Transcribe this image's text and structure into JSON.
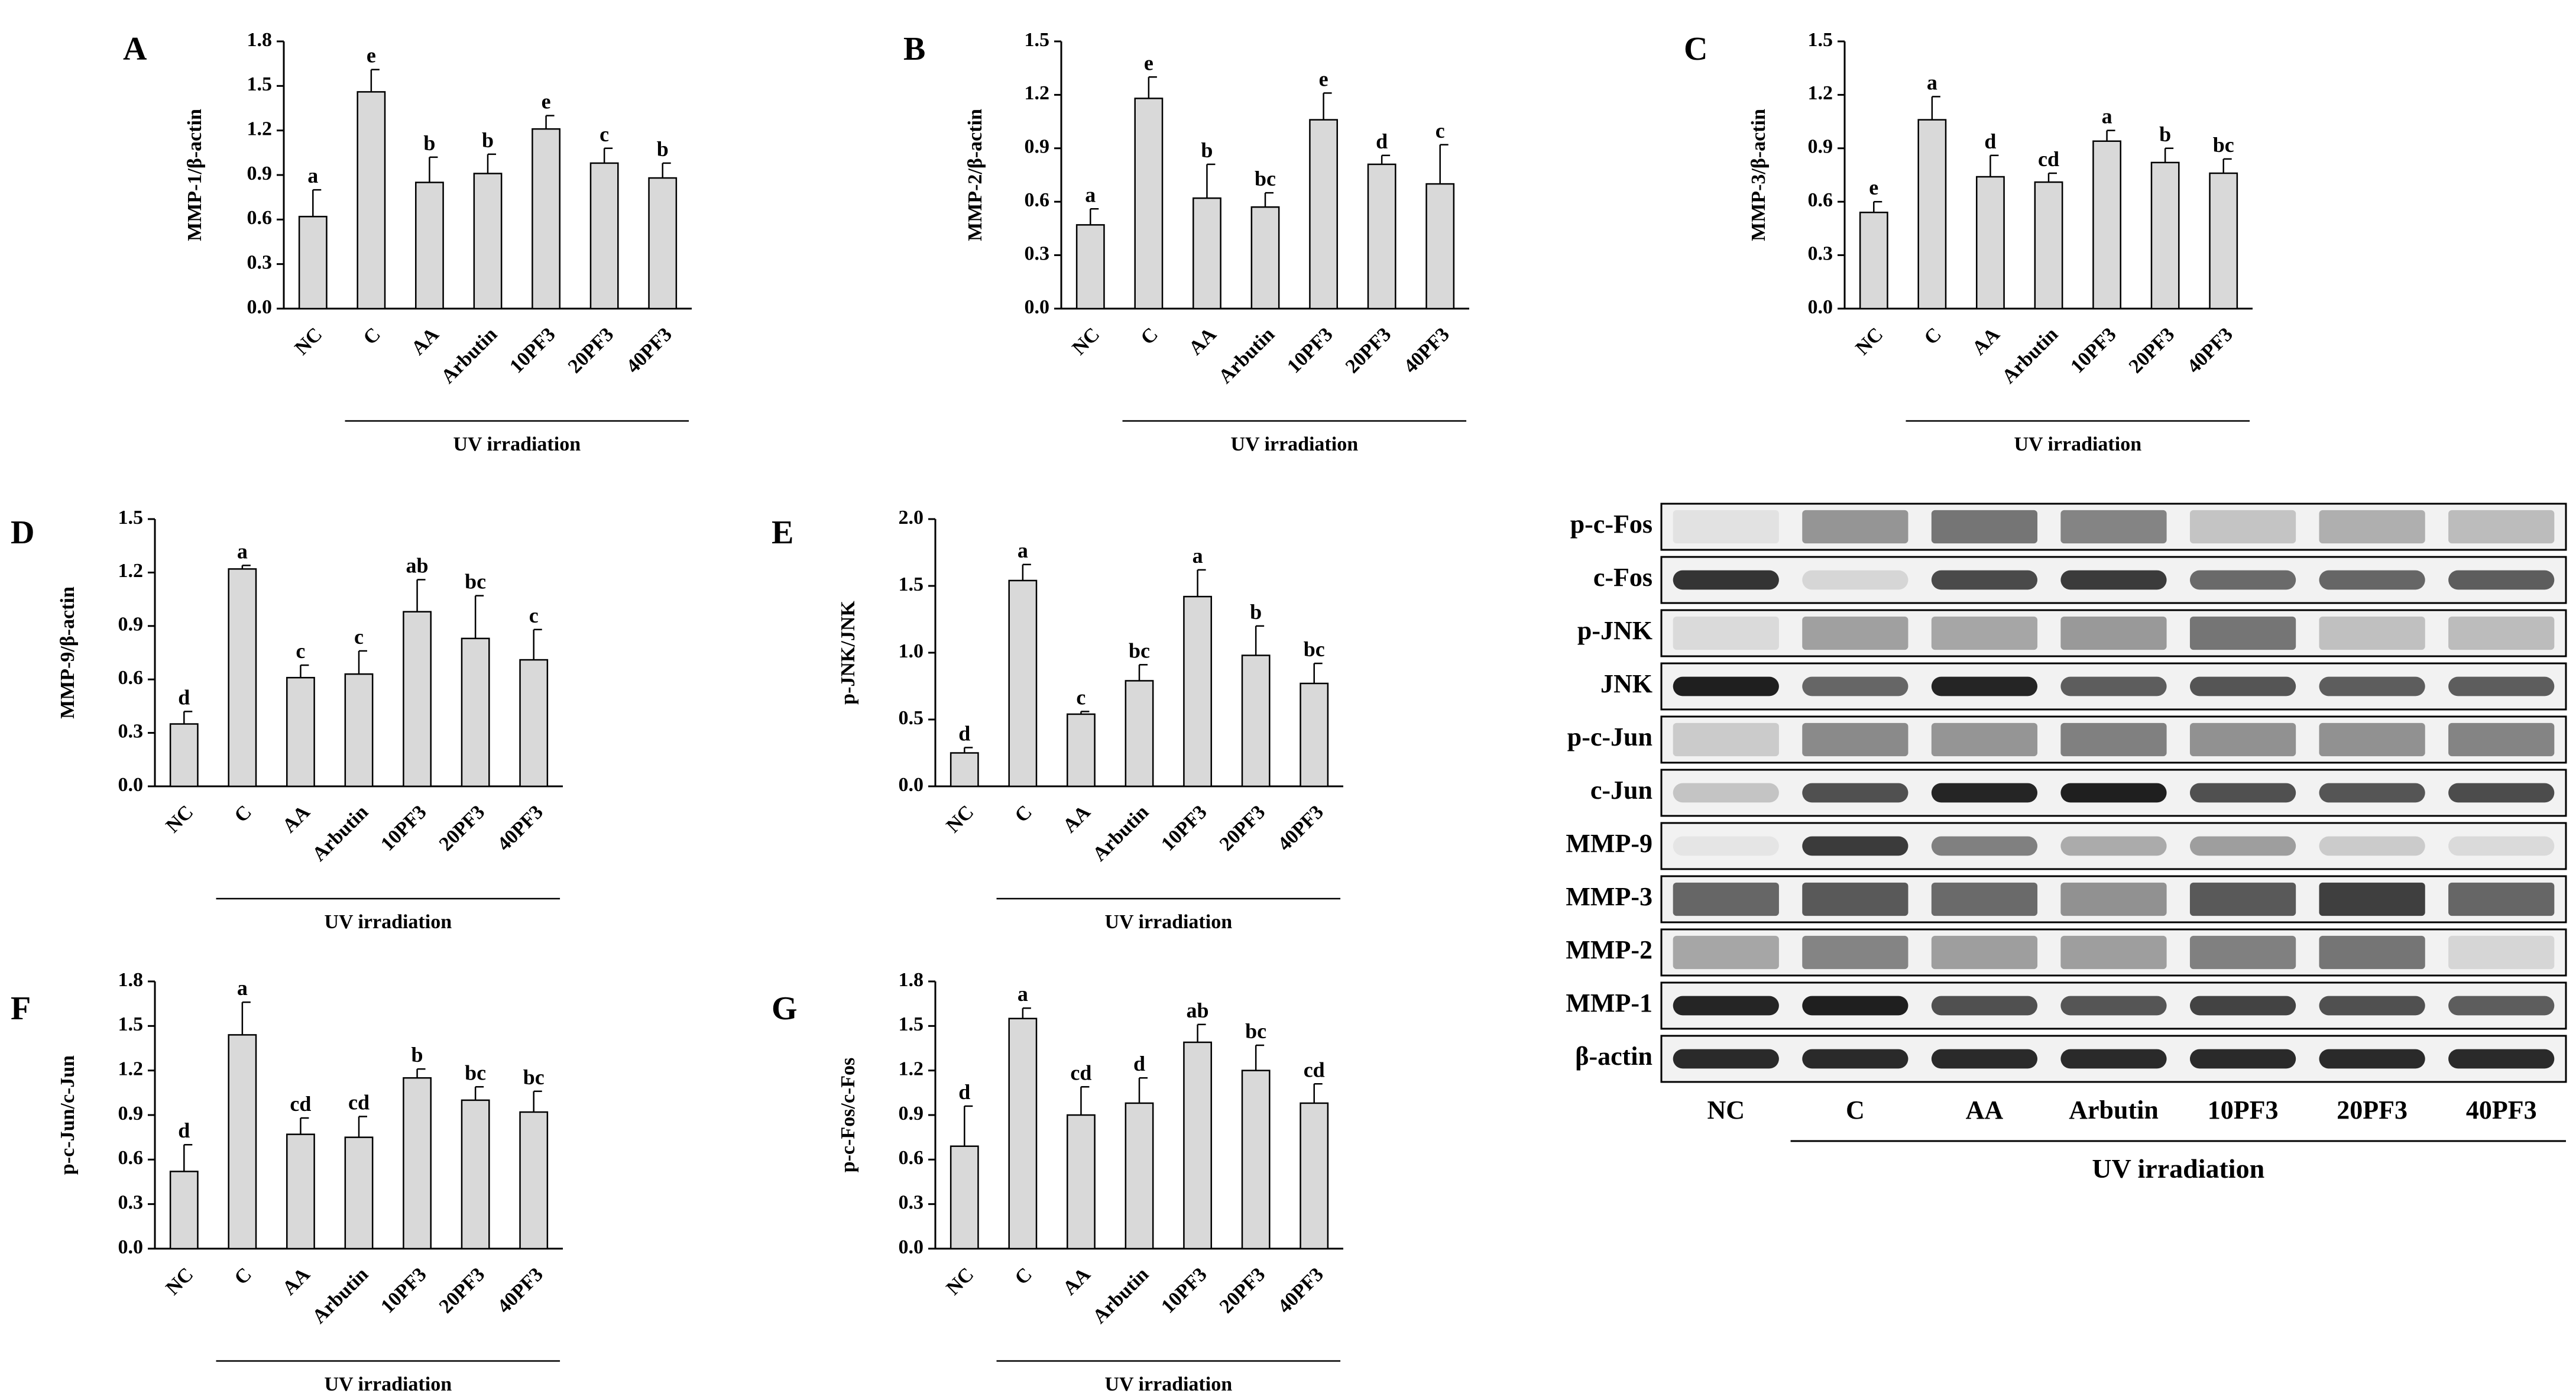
{
  "chart_data": [
    {
      "type": "bar",
      "panel": "A",
      "ylabel": "MMP-1/β-actin",
      "ylim": [
        0,
        1.8
      ],
      "yticks": [
        "0.0",
        "0.3",
        "0.6",
        "0.9",
        "1.2",
        "1.5",
        "1.8"
      ],
      "categories": [
        "NC",
        "C",
        "AA",
        "Arbutin",
        "10PF3",
        "20PF3",
        "40PF3"
      ],
      "values": [
        0.62,
        1.46,
        0.85,
        0.91,
        1.21,
        0.98,
        0.88
      ],
      "errors": [
        0.18,
        0.15,
        0.17,
        0.13,
        0.09,
        0.1,
        0.1
      ],
      "sig": [
        "a",
        "e",
        "b",
        "b",
        "e",
        "c",
        "b"
      ],
      "group_label": "UV irradiation"
    },
    {
      "type": "bar",
      "panel": "B",
      "ylabel": "MMP-2/β-actin",
      "ylim": [
        0,
        1.5
      ],
      "yticks": [
        "0.0",
        "0.3",
        "0.6",
        "0.9",
        "1.2",
        "1.5"
      ],
      "categories": [
        "NC",
        "C",
        "AA",
        "Arbutin",
        "10PF3",
        "20PF3",
        "40PF3"
      ],
      "values": [
        0.47,
        1.18,
        0.62,
        0.57,
        1.06,
        0.81,
        0.7
      ],
      "errors": [
        0.09,
        0.12,
        0.19,
        0.08,
        0.15,
        0.05,
        0.22
      ],
      "sig": [
        "a",
        "e",
        "b",
        "bc",
        "e",
        "d",
        "c"
      ],
      "group_label": "UV irradiation"
    },
    {
      "type": "bar",
      "panel": "C",
      "ylabel": "MMP-3/β-actin",
      "ylim": [
        0,
        1.5
      ],
      "yticks": [
        "0.0",
        "0.3",
        "0.6",
        "0.9",
        "1.2",
        "1.5"
      ],
      "categories": [
        "NC",
        "C",
        "AA",
        "Arbutin",
        "10PF3",
        "20PF3",
        "40PF3"
      ],
      "values": [
        0.54,
        1.06,
        0.74,
        0.71,
        0.94,
        0.82,
        0.76
      ],
      "errors": [
        0.06,
        0.13,
        0.12,
        0.05,
        0.06,
        0.08,
        0.08
      ],
      "sig": [
        "e",
        "a",
        "d",
        "cd",
        "a",
        "b",
        "bc"
      ],
      "group_label": "UV irradiation"
    },
    {
      "type": "bar",
      "panel": "D",
      "ylabel": "MMP-9/β-actin",
      "ylim": [
        0,
        1.5
      ],
      "yticks": [
        "0.0",
        "0.3",
        "0.6",
        "0.9",
        "1.2",
        "1.5"
      ],
      "categories": [
        "NC",
        "C",
        "AA",
        "Arbutin",
        "10PF3",
        "20PF3",
        "40PF3"
      ],
      "values": [
        0.35,
        1.22,
        0.61,
        0.63,
        0.98,
        0.83,
        0.71
      ],
      "errors": [
        0.07,
        0.02,
        0.07,
        0.13,
        0.18,
        0.24,
        0.17
      ],
      "sig": [
        "d",
        "a",
        "c",
        "c",
        "ab",
        "bc",
        "c"
      ],
      "group_label": "UV irradiation"
    },
    {
      "type": "bar",
      "panel": "E",
      "ylabel": "p-JNK/JNK",
      "ylim": [
        0,
        2.0
      ],
      "yticks": [
        "0.0",
        "0.5",
        "1.0",
        "1.5",
        "2.0"
      ],
      "categories": [
        "NC",
        "C",
        "AA",
        "Arbutin",
        "10PF3",
        "20PF3",
        "40PF3"
      ],
      "values": [
        0.25,
        1.54,
        0.54,
        0.79,
        1.42,
        0.98,
        0.77
      ],
      "errors": [
        0.04,
        0.12,
        0.02,
        0.12,
        0.2,
        0.22,
        0.15
      ],
      "sig": [
        "d",
        "a",
        "c",
        "bc",
        "a",
        "b",
        "bc"
      ],
      "group_label": "UV irradiation"
    },
    {
      "type": "bar",
      "panel": "F",
      "ylabel": "p-c-Jun/c-Jun",
      "ylim": [
        0,
        1.8
      ],
      "yticks": [
        "0.0",
        "0.3",
        "0.6",
        "0.9",
        "1.2",
        "1.5",
        "1.8"
      ],
      "categories": [
        "NC",
        "C",
        "AA",
        "Arbutin",
        "10PF3",
        "20PF3",
        "40PF3"
      ],
      "values": [
        0.52,
        1.44,
        0.77,
        0.75,
        1.15,
        1.0,
        0.92
      ],
      "errors": [
        0.18,
        0.22,
        0.11,
        0.14,
        0.06,
        0.09,
        0.14
      ],
      "sig": [
        "d",
        "a",
        "cd",
        "cd",
        "b",
        "bc",
        "bc"
      ],
      "group_label": "UV irradiation"
    },
    {
      "type": "bar",
      "panel": "G",
      "ylabel": "p-c-Fos/c-Fos",
      "ylim": [
        0,
        1.8
      ],
      "yticks": [
        "0.0",
        "0.3",
        "0.6",
        "0.9",
        "1.2",
        "1.5",
        "1.8"
      ],
      "categories": [
        "NC",
        "C",
        "AA",
        "Arbutin",
        "10PF3",
        "20PF3",
        "40PF3"
      ],
      "values": [
        0.69,
        1.55,
        0.9,
        0.98,
        1.39,
        1.2,
        0.98
      ],
      "errors": [
        0.27,
        0.07,
        0.19,
        0.17,
        0.12,
        0.17,
        0.13
      ],
      "sig": [
        "d",
        "a",
        "cd",
        "d",
        "ab",
        "bc",
        "cd"
      ],
      "group_label": "UV irradiation"
    }
  ],
  "blot": {
    "rows": [
      {
        "label": "p-c-Fos",
        "intensity": [
          0.04,
          0.4,
          0.55,
          0.48,
          0.18,
          0.28,
          0.22
        ],
        "band": false
      },
      {
        "label": "c-Fos",
        "intensity": [
          0.85,
          0.1,
          0.75,
          0.82,
          0.6,
          0.62,
          0.66
        ],
        "band": true
      },
      {
        "label": "p-JNK",
        "intensity": [
          0.08,
          0.35,
          0.32,
          0.38,
          0.55,
          0.2,
          0.22
        ],
        "band": false
      },
      {
        "label": "JNK",
        "intensity": [
          0.95,
          0.62,
          0.92,
          0.66,
          0.7,
          0.66,
          0.66
        ],
        "band": true
      },
      {
        "label": "p-c-Jun",
        "intensity": [
          0.15,
          0.45,
          0.4,
          0.5,
          0.42,
          0.42,
          0.48
        ],
        "band": false
      },
      {
        "label": "c-Jun",
        "intensity": [
          0.18,
          0.72,
          0.92,
          0.95,
          0.72,
          0.7,
          0.74
        ],
        "band": true
      },
      {
        "label": "MMP-9",
        "intensity": [
          0.03,
          0.82,
          0.5,
          0.3,
          0.36,
          0.15,
          0.08
        ],
        "band": true
      },
      {
        "label": "MMP-3",
        "intensity": [
          0.62,
          0.68,
          0.6,
          0.42,
          0.68,
          0.8,
          0.62
        ],
        "band": false
      },
      {
        "label": "MMP-2",
        "intensity": [
          0.32,
          0.48,
          0.36,
          0.36,
          0.5,
          0.55,
          0.1
        ],
        "band": false
      },
      {
        "label": "MMP-1",
        "intensity": [
          0.92,
          0.95,
          0.72,
          0.7,
          0.78,
          0.72,
          0.66
        ],
        "band": true
      },
      {
        "label": "β-actin",
        "intensity": [
          0.9,
          0.9,
          0.9,
          0.9,
          0.9,
          0.9,
          0.9
        ],
        "band": true
      }
    ],
    "lanes": [
      "NC",
      "C",
      "AA",
      "Arbutin",
      "10PF3",
      "20PF3",
      "40PF3"
    ],
    "group_label": "UV irradiation"
  }
}
